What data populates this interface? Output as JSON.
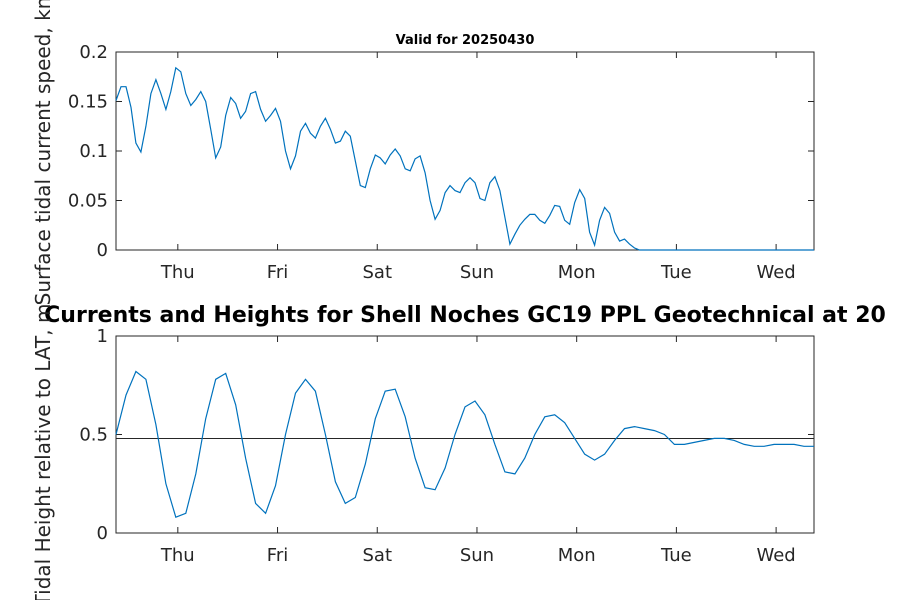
{
  "chart_data": [
    {
      "type": "line",
      "title": "Valid for 20250430",
      "xlabel": "",
      "ylabel": "Surface tidal current speed, kn",
      "xlim": [
        0,
        7
      ],
      "ylim": [
        0,
        0.2
      ],
      "xticks": [
        0.62,
        1.62,
        2.62,
        3.62,
        4.62,
        5.62,
        6.62
      ],
      "xtick_labels": [
        "Thu",
        "Fri",
        "Sat",
        "Sun",
        "Mon",
        "Tue",
        "Wed"
      ],
      "yticks": [
        0,
        0.05,
        0.1,
        0.15,
        0.2
      ],
      "ytick_labels": [
        "0",
        "0.05",
        "0.1",
        "0.15",
        "0.2"
      ],
      "colors": {
        "line": "#0072BD"
      },
      "series": [
        {
          "x": [
            0,
            0.05,
            0.1,
            0.15,
            0.2,
            0.25,
            0.3,
            0.35,
            0.4,
            0.45,
            0.5,
            0.55,
            0.6,
            0.65,
            0.7,
            0.75,
            0.8,
            0.85,
            0.9,
            0.95,
            1.0,
            1.05,
            1.1,
            1.15,
            1.2,
            1.25,
            1.3,
            1.35,
            1.4,
            1.45,
            1.5,
            1.55,
            1.6,
            1.65,
            1.7,
            1.75,
            1.8,
            1.85,
            1.9,
            1.95,
            2.0,
            2.05,
            2.1,
            2.15,
            2.2,
            2.25,
            2.3,
            2.35,
            2.4,
            2.45,
            2.5,
            2.55,
            2.6,
            2.65,
            2.7,
            2.75,
            2.8,
            2.85,
            2.9,
            2.95,
            3.0,
            3.05,
            3.1,
            3.15,
            3.2,
            3.25,
            3.3,
            3.35,
            3.4,
            3.45,
            3.5,
            3.55,
            3.6,
            3.65,
            3.7,
            3.75,
            3.8,
            3.85,
            3.9,
            3.95,
            4.0,
            4.05,
            4.1,
            4.15,
            4.2,
            4.25,
            4.3,
            4.35,
            4.4,
            4.45,
            4.5,
            4.55,
            4.6,
            4.65,
            4.7,
            4.75,
            4.8,
            4.85,
            4.9,
            4.95,
            5.0,
            5.05,
            5.1,
            5.15,
            5.2,
            5.25,
            5.3,
            5.35,
            5.4,
            5.45,
            5.5,
            5.55,
            5.6,
            5.65,
            5.7,
            5.75,
            5.8,
            5.85,
            5.9,
            5.95,
            6.0,
            6.05,
            6.1,
            6.15,
            6.2,
            6.25,
            6.3,
            6.35,
            6.4,
            6.45,
            6.5,
            6.55,
            6.6,
            6.65,
            6.7,
            6.75,
            6.8,
            6.85,
            6.9,
            6.95,
            7.0
          ],
          "y": [
            0.151,
            0.165,
            0.165,
            0.144,
            0.108,
            0.099,
            0.125,
            0.158,
            0.172,
            0.158,
            0.142,
            0.16,
            0.184,
            0.18,
            0.158,
            0.146,
            0.152,
            0.16,
            0.15,
            0.122,
            0.093,
            0.104,
            0.136,
            0.154,
            0.148,
            0.133,
            0.14,
            0.158,
            0.16,
            0.142,
            0.13,
            0.136,
            0.143,
            0.13,
            0.1,
            0.082,
            0.095,
            0.12,
            0.128,
            0.118,
            0.113,
            0.125,
            0.133,
            0.122,
            0.108,
            0.11,
            0.12,
            0.115,
            0.09,
            0.065,
            0.063,
            0.082,
            0.096,
            0.093,
            0.087,
            0.096,
            0.102,
            0.095,
            0.082,
            0.08,
            0.092,
            0.095,
            0.078,
            0.05,
            0.031,
            0.04,
            0.058,
            0.065,
            0.06,
            0.058,
            0.068,
            0.073,
            0.068,
            0.052,
            0.05,
            0.068,
            0.074,
            0.06,
            0.033,
            0.006,
            0.016,
            0.025,
            0.031,
            0.036,
            0.036,
            0.03,
            0.027,
            0.035,
            0.045,
            0.044,
            0.03,
            0.026,
            0.048,
            0.061,
            0.052,
            0.018,
            0.005,
            0.03,
            0.043,
            0.037,
            0.018,
            0.009,
            0.011,
            0.006,
            0.002,
            0,
            0,
            0,
            0,
            0,
            0,
            0,
            0,
            0,
            0,
            0,
            0,
            0,
            0,
            0,
            0,
            0,
            0,
            0,
            0,
            0,
            0,
            0,
            0,
            0,
            0,
            0,
            0,
            0,
            0,
            0,
            0,
            0,
            0,
            0,
            0
          ]
        }
      ]
    },
    {
      "type": "line",
      "title": "Currents and Heights for Shell Noches   GC19 PPL  Geotechnical at 20",
      "xlabel": "",
      "ylabel": "Tidal Height relative to LAT, m",
      "xlim": [
        0,
        7
      ],
      "ylim": [
        0,
        1
      ],
      "xticks": [
        0.62,
        1.62,
        2.62,
        3.62,
        4.62,
        5.62,
        6.62
      ],
      "xtick_labels": [
        "Thu",
        "Fri",
        "Sat",
        "Sun",
        "Mon",
        "Tue",
        "Wed"
      ],
      "yticks": [
        0,
        0.5,
        1
      ],
      "ytick_labels": [
        "0",
        "0.5",
        "1"
      ],
      "reference_line": 0.48,
      "colors": {
        "line": "#0072BD",
        "reference": "#262626"
      },
      "series": [
        {
          "x": [
            0,
            0.1,
            0.2,
            0.3,
            0.4,
            0.5,
            0.6,
            0.7,
            0.8,
            0.9,
            1.0,
            1.1,
            1.2,
            1.3,
            1.4,
            1.5,
            1.6,
            1.7,
            1.8,
            1.9,
            2.0,
            2.1,
            2.2,
            2.3,
            2.4,
            2.5,
            2.6,
            2.7,
            2.8,
            2.9,
            3.0,
            3.1,
            3.2,
            3.3,
            3.4,
            3.5,
            3.6,
            3.7,
            3.8,
            3.9,
            4.0,
            4.1,
            4.2,
            4.3,
            4.4,
            4.5,
            4.6,
            4.7,
            4.8,
            4.9,
            5.0,
            5.1,
            5.2,
            5.3,
            5.4,
            5.5,
            5.6,
            5.7,
            5.8,
            5.9,
            6.0,
            6.1,
            6.2,
            6.3,
            6.4,
            6.5,
            6.6,
            6.7,
            6.8,
            6.9,
            7.0
          ],
          "y": [
            0.5,
            0.7,
            0.82,
            0.78,
            0.55,
            0.25,
            0.08,
            0.1,
            0.3,
            0.58,
            0.78,
            0.81,
            0.65,
            0.38,
            0.15,
            0.1,
            0.24,
            0.5,
            0.71,
            0.78,
            0.72,
            0.5,
            0.26,
            0.15,
            0.18,
            0.35,
            0.58,
            0.72,
            0.73,
            0.59,
            0.38,
            0.23,
            0.22,
            0.33,
            0.5,
            0.64,
            0.67,
            0.6,
            0.45,
            0.31,
            0.3,
            0.38,
            0.5,
            0.59,
            0.6,
            0.56,
            0.48,
            0.4,
            0.37,
            0.4,
            0.47,
            0.53,
            0.54,
            0.53,
            0.52,
            0.5,
            0.45,
            0.45,
            0.46,
            0.47,
            0.48,
            0.48,
            0.47,
            0.45,
            0.44,
            0.44,
            0.45,
            0.45,
            0.45,
            0.44,
            0.44
          ]
        }
      ]
    }
  ]
}
